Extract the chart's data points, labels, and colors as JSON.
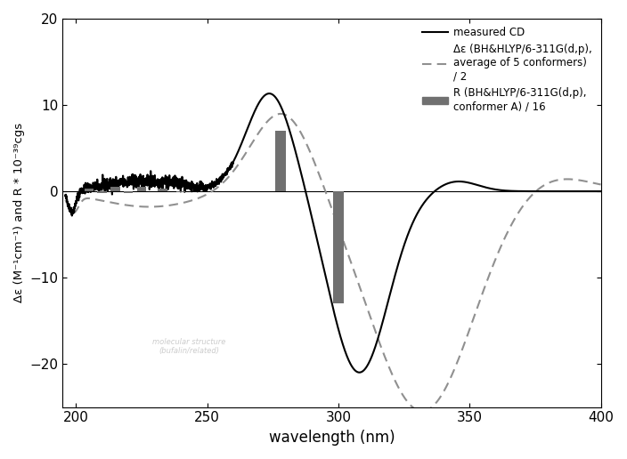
{
  "xlim": [
    195,
    400
  ],
  "ylim": [
    -25,
    20
  ],
  "xticks": [
    200,
    250,
    300,
    350,
    400
  ],
  "yticks": [
    -20,
    -10,
    0,
    10,
    20
  ],
  "xlabel": "wavelength (nm)",
  "ylabel": "Δε (M⁻¹cm⁻¹) and R * 10⁻³⁹cgs",
  "background_color": "#ffffff",
  "measured_cd_color": "#000000",
  "dashed_color": "#909090",
  "bar_color": "#707070",
  "legend_entries": [
    "measured CD",
    "Δε (BH&HLYP/6-311G(d,p),\naverage of 5 conformers)\n/ 2",
    "R (BH&HLYP/6-311G(d,p),\nconformer A) / 16"
  ]
}
